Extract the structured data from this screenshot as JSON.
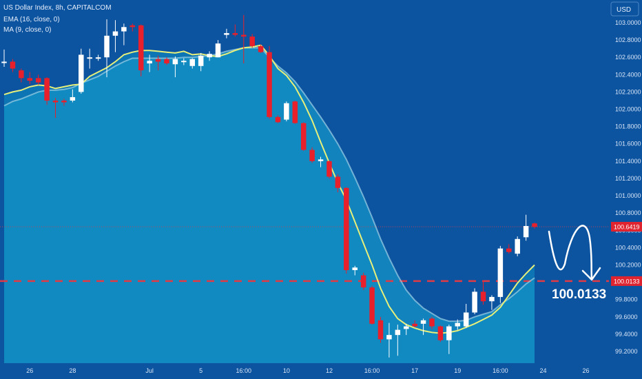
{
  "chart_data": {
    "type": "candlestick",
    "title": "US Dollar Index, 8h, CAPITALCOM",
    "indicators": [
      {
        "label": "EMA (16, close, 0)",
        "color": "#9fd0e6"
      },
      {
        "label": "MA (9, close, 0)",
        "color": "#e8f07a"
      }
    ],
    "currency": "USD",
    "y_ticks": [
      "103.0000",
      "102.8000",
      "102.6000",
      "102.4000",
      "102.2000",
      "102.0000",
      "101.8000",
      "101.6000",
      "101.4000",
      "101.2000",
      "101.0000",
      "100.8000",
      "100.6000",
      "100.4000",
      "100.2000",
      "100.0000",
      "99.8000",
      "99.6000",
      "99.4000",
      "99.2000"
    ],
    "y_tick_values": [
      103.0,
      102.8,
      102.6,
      102.4,
      102.2,
      102.0,
      101.8,
      101.6,
      101.4,
      101.2,
      101.0,
      100.8,
      100.6,
      100.4,
      100.2,
      100.0,
      99.8,
      99.6,
      99.4,
      99.2
    ],
    "x_ticks": [
      {
        "label": "26",
        "i": 3
      },
      {
        "label": "28",
        "i": 8
      },
      {
        "label": "Jul",
        "i": 17
      },
      {
        "label": "5",
        "i": 23
      },
      {
        "label": "16:00",
        "i": 28
      },
      {
        "label": "10",
        "i": 33
      },
      {
        "label": "12",
        "i": 38
      },
      {
        "label": "16:00",
        "i": 43
      },
      {
        "label": "17",
        "i": 48
      },
      {
        "label": "19",
        "i": 53
      },
      {
        "label": "16:00",
        "i": 58
      },
      {
        "label": "24",
        "i": 63
      },
      {
        "label": "26",
        "i": 68
      }
    ],
    "candles": [
      {
        "o": 102.55,
        "h": 102.69,
        "l": 102.49,
        "c": 102.55
      },
      {
        "o": 102.55,
        "h": 102.58,
        "l": 102.43,
        "c": 102.47
      },
      {
        "o": 102.45,
        "h": 102.47,
        "l": 102.31,
        "c": 102.36
      },
      {
        "o": 102.36,
        "h": 102.43,
        "l": 102.29,
        "c": 102.33
      },
      {
        "o": 102.36,
        "h": 102.4,
        "l": 102.28,
        "c": 102.31
      },
      {
        "o": 102.36,
        "h": 102.37,
        "l": 102.05,
        "c": 102.1
      },
      {
        "o": 102.1,
        "h": 102.13,
        "l": 101.9,
        "c": 102.08
      },
      {
        "o": 102.1,
        "h": 102.12,
        "l": 102.04,
        "c": 102.08
      },
      {
        "o": 102.1,
        "h": 102.23,
        "l": 102.08,
        "c": 102.14
      },
      {
        "o": 102.2,
        "h": 102.7,
        "l": 102.18,
        "c": 102.63
      },
      {
        "o": 102.6,
        "h": 102.7,
        "l": 102.47,
        "c": 102.6
      },
      {
        "o": 102.6,
        "h": 102.63,
        "l": 102.56,
        "c": 102.6
      },
      {
        "o": 102.6,
        "h": 103.04,
        "l": 102.37,
        "c": 102.85
      },
      {
        "o": 102.85,
        "h": 103.03,
        "l": 102.66,
        "c": 102.9
      },
      {
        "o": 102.9,
        "h": 102.99,
        "l": 102.74,
        "c": 102.95
      },
      {
        "o": 102.97,
        "h": 102.99,
        "l": 102.9,
        "c": 102.95
      },
      {
        "o": 102.97,
        "h": 102.98,
        "l": 102.38,
        "c": 102.45
      },
      {
        "o": 102.53,
        "h": 102.63,
        "l": 102.43,
        "c": 102.56
      },
      {
        "o": 102.58,
        "h": 102.62,
        "l": 102.45,
        "c": 102.55
      },
      {
        "o": 102.58,
        "h": 102.6,
        "l": 102.51,
        "c": 102.53
      },
      {
        "o": 102.52,
        "h": 102.61,
        "l": 102.37,
        "c": 102.58
      },
      {
        "o": 102.55,
        "h": 102.59,
        "l": 102.51,
        "c": 102.56
      },
      {
        "o": 102.5,
        "h": 102.59,
        "l": 102.47,
        "c": 102.58
      },
      {
        "o": 102.5,
        "h": 102.65,
        "l": 102.44,
        "c": 102.62
      },
      {
        "o": 102.6,
        "h": 102.67,
        "l": 102.56,
        "c": 102.64
      },
      {
        "o": 102.6,
        "h": 102.8,
        "l": 102.6,
        "c": 102.76
      },
      {
        "o": 102.86,
        "h": 102.93,
        "l": 102.82,
        "c": 102.88
      },
      {
        "o": 102.88,
        "h": 102.98,
        "l": 102.84,
        "c": 102.86
      },
      {
        "o": 102.86,
        "h": 103.09,
        "l": 102.53,
        "c": 102.84
      },
      {
        "o": 102.84,
        "h": 102.87,
        "l": 102.71,
        "c": 102.73
      },
      {
        "o": 102.73,
        "h": 102.75,
        "l": 102.65,
        "c": 102.66
      },
      {
        "o": 102.66,
        "h": 102.73,
        "l": 101.89,
        "c": 101.91
      },
      {
        "o": 101.91,
        "h": 101.93,
        "l": 101.84,
        "c": 101.85
      },
      {
        "o": 101.88,
        "h": 102.09,
        "l": 101.86,
        "c": 102.07
      },
      {
        "o": 102.09,
        "h": 102.1,
        "l": 101.83,
        "c": 101.84
      },
      {
        "o": 101.84,
        "h": 101.85,
        "l": 101.52,
        "c": 101.53
      },
      {
        "o": 101.53,
        "h": 101.56,
        "l": 101.38,
        "c": 101.4
      },
      {
        "o": 101.4,
        "h": 101.45,
        "l": 101.33,
        "c": 101.42
      },
      {
        "o": 101.4,
        "h": 101.41,
        "l": 101.2,
        "c": 101.22
      },
      {
        "o": 101.22,
        "h": 101.25,
        "l": 101.04,
        "c": 101.09
      },
      {
        "o": 101.09,
        "h": 101.1,
        "l": 100.1,
        "c": 100.14
      },
      {
        "o": 100.14,
        "h": 100.19,
        "l": 100.08,
        "c": 100.17
      },
      {
        "o": 100.08,
        "h": 100.11,
        "l": 99.91,
        "c": 99.94
      },
      {
        "o": 99.94,
        "h": 99.96,
        "l": 99.51,
        "c": 99.52
      },
      {
        "o": 99.56,
        "h": 99.6,
        "l": 99.3,
        "c": 99.34
      },
      {
        "o": 99.34,
        "h": 99.53,
        "l": 99.13,
        "c": 99.39
      },
      {
        "o": 99.39,
        "h": 99.51,
        "l": 99.15,
        "c": 99.45
      },
      {
        "o": 99.46,
        "h": 99.52,
        "l": 99.39,
        "c": 99.49
      },
      {
        "o": 99.52,
        "h": 99.56,
        "l": 99.48,
        "c": 99.49
      },
      {
        "o": 99.52,
        "h": 99.58,
        "l": 99.39,
        "c": 99.56
      },
      {
        "o": 99.58,
        "h": 99.6,
        "l": 99.46,
        "c": 99.49
      },
      {
        "o": 99.49,
        "h": 99.5,
        "l": 99.31,
        "c": 99.33
      },
      {
        "o": 99.33,
        "h": 99.51,
        "l": 99.17,
        "c": 99.49
      },
      {
        "o": 99.49,
        "h": 99.57,
        "l": 99.45,
        "c": 99.53
      },
      {
        "o": 99.49,
        "h": 99.75,
        "l": 99.47,
        "c": 99.65
      },
      {
        "o": 99.65,
        "h": 99.93,
        "l": 99.63,
        "c": 99.89
      },
      {
        "o": 99.89,
        "h": 100.02,
        "l": 99.74,
        "c": 99.78
      },
      {
        "o": 99.78,
        "h": 99.85,
        "l": 99.68,
        "c": 99.83
      },
      {
        "o": 99.83,
        "h": 100.42,
        "l": 99.76,
        "c": 100.39
      },
      {
        "o": 100.39,
        "h": 100.44,
        "l": 100.33,
        "c": 100.35
      },
      {
        "o": 100.33,
        "h": 100.53,
        "l": 100.3,
        "c": 100.5
      },
      {
        "o": 100.52,
        "h": 100.78,
        "l": 100.48,
        "c": 100.65
      },
      {
        "o": 100.68,
        "h": 100.69,
        "l": 100.62,
        "c": 100.64
      }
    ],
    "ma_line": [
      102.17,
      102.2,
      102.22,
      102.26,
      102.28,
      102.27,
      102.24,
      102.26,
      102.28,
      102.29,
      102.38,
      102.43,
      102.48,
      102.55,
      102.63,
      102.66,
      102.68,
      102.68,
      102.67,
      102.66,
      102.65,
      102.67,
      102.63,
      102.64,
      102.62,
      102.61,
      102.64,
      102.68,
      102.71,
      102.72,
      102.74,
      102.62,
      102.47,
      102.39,
      102.26,
      102.08,
      101.87,
      101.62,
      101.38,
      101.15,
      100.95,
      100.7,
      100.45,
      100.2,
      99.93,
      99.72,
      99.58,
      99.51,
      99.47,
      99.44,
      99.42,
      99.41,
      99.42,
      99.44,
      99.48,
      99.52,
      99.57,
      99.62,
      99.71,
      99.85,
      99.99,
      100.1,
      100.2
    ],
    "ema_line": [
      102.04,
      102.09,
      102.12,
      102.16,
      102.2,
      102.22,
      102.22,
      102.23,
      102.25,
      102.3,
      102.34,
      102.38,
      102.44,
      102.5,
      102.55,
      102.59,
      102.59,
      102.59,
      102.59,
      102.59,
      102.59,
      102.6,
      102.6,
      102.61,
      102.62,
      102.64,
      102.67,
      102.69,
      102.71,
      102.71,
      102.71,
      102.6,
      102.5,
      102.42,
      102.32,
      102.19,
      102.05,
      101.91,
      101.76,
      101.6,
      101.42,
      101.21,
      100.99,
      100.75,
      100.5,
      100.28,
      100.08,
      99.91,
      99.79,
      99.7,
      99.64,
      99.58,
      99.55,
      99.55,
      99.56,
      99.6,
      99.63,
      99.66,
      99.74,
      99.81,
      99.89,
      99.98,
      100.05
    ],
    "reference_lines": [
      {
        "value": 100.6419,
        "label": "100.6419",
        "style": "dotted"
      },
      {
        "value": 100.0133,
        "label": "100.0133",
        "style": "dashed"
      }
    ],
    "annotation": {
      "text": "100.0133"
    }
  }
}
